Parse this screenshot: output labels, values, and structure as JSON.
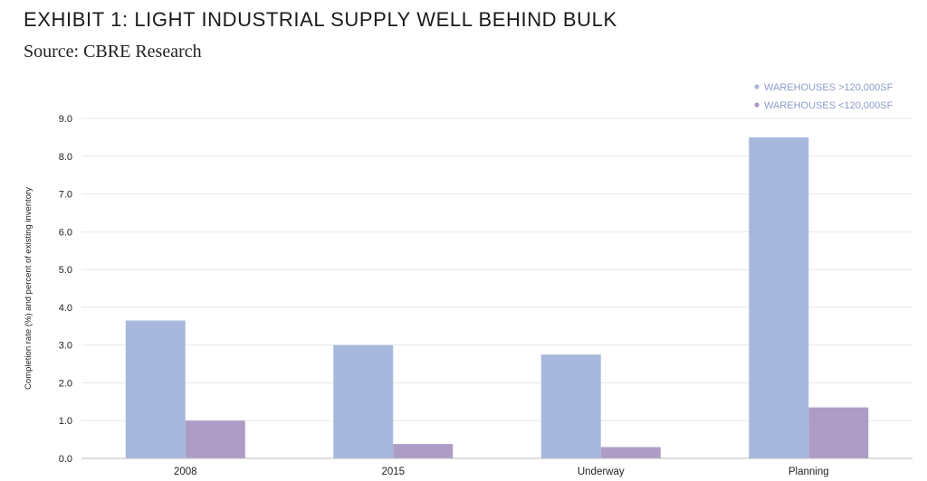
{
  "title": "EXHIBIT 1: LIGHT INDUSTRIAL SUPPLY WELL BEHIND BULK",
  "subtitle": "Source: CBRE Research",
  "chart_data": {
    "type": "bar",
    "categories": [
      "2008",
      "2015",
      "Underway",
      "Planning"
    ],
    "series": [
      {
        "name": "WAREHOUSES >120,000SF",
        "values": [
          3.65,
          3.0,
          2.75,
          8.5
        ],
        "color": "#a8b8dc"
      },
      {
        "name": "WAREHOUSES <120,000SF",
        "values": [
          1.0,
          0.38,
          0.3,
          1.35
        ],
        "color": "#ad9cc6"
      }
    ],
    "ylabel": "Completion rate (%) and percent of existing inventory",
    "xlabel": "",
    "ylim": [
      0,
      9
    ],
    "yticks": [
      "0.0",
      "1.0",
      "2.0",
      "3.0",
      "4.0",
      "5.0",
      "6.0",
      "7.0",
      "8.0",
      "9.0"
    ],
    "grid": true,
    "legend_position": "top-right",
    "gridline_color": "#e8e8e8",
    "legend_text_color": "#8f9bc9"
  }
}
